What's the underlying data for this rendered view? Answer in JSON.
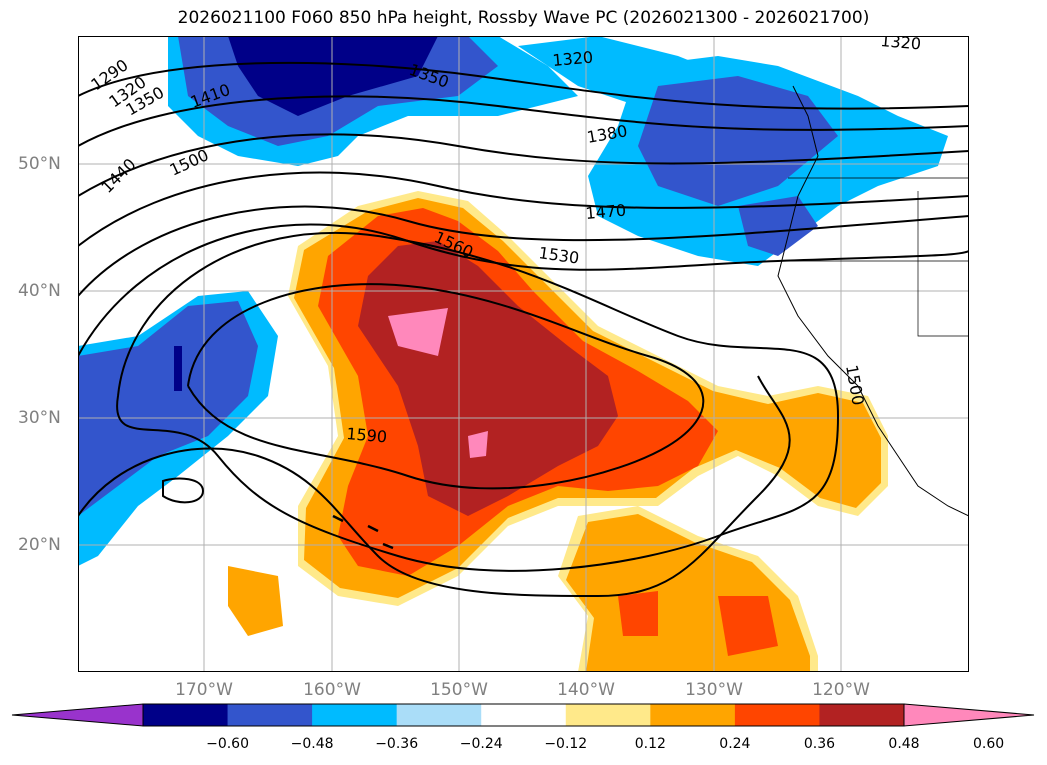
{
  "title": "2026021100 F060 850 hPa height, Rossby Wave PC (2026021300 - 2026021700)",
  "map": {
    "lon_labels": [
      "170°W",
      "160°W",
      "150°W",
      "140°W",
      "130°W",
      "120°W"
    ],
    "lat_labels": [
      "50°N",
      "40°N",
      "30°N",
      "20°N"
    ],
    "contour_labels": [
      "1290",
      "1320",
      "1350",
      "1410",
      "1440",
      "1500",
      "1560",
      "1530",
      "1590",
      "1350",
      "1320",
      "1380",
      "1470",
      "1320",
      "1500"
    ]
  },
  "colorbar": {
    "levels": [
      -0.72,
      -0.6,
      -0.48,
      -0.36,
      -0.24,
      -0.12,
      0.12,
      0.24,
      0.36,
      0.48,
      0.6,
      0.72
    ],
    "colors": [
      "#9933cc",
      "#000088",
      "#3355cc",
      "#00bbff",
      "#aaddf8",
      "#ffffff",
      "#ffe98a",
      "#ffa500",
      "#ff4500",
      "#b22222",
      "#ff88bb"
    ],
    "tick_labels": [
      "−0.60",
      "−0.48",
      "−0.36",
      "−0.24",
      "−0.12",
      "0.12",
      "0.24",
      "0.36",
      "0.48",
      "0.60"
    ]
  }
}
